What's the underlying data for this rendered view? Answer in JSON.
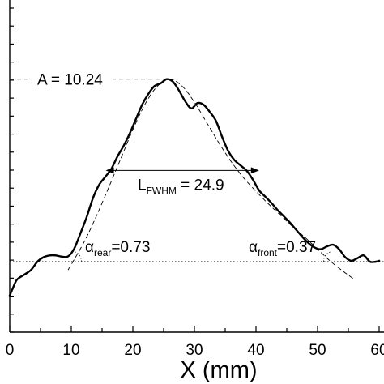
{
  "chart_data": {
    "type": "line",
    "xlabel": "X (mm)",
    "xlim": [
      0,
      60
    ],
    "x_ticks": [
      0,
      10,
      20,
      30,
      40,
      50,
      60
    ],
    "x_tick_labels": [
      "0",
      "10",
      "20",
      "30",
      "40",
      "50",
      "60"
    ],
    "y_tick_count": 19,
    "grid": false,
    "baseline_y": 0,
    "series": [
      {
        "style": "solid-thick",
        "x": [
          0,
          0.5,
          1.2,
          2.5,
          3.5,
          4.5,
          5.5,
          6.5,
          7.5,
          8.5,
          9.5,
          10.5,
          11.5,
          12.5,
          13.5,
          14.5,
          15.5,
          16.5,
          17.5,
          18.5,
          19.5,
          20.5,
          21.5,
          22.5,
          23.5,
          24.5,
          25.5,
          26.5,
          27.5,
          28.5,
          29.5,
          30.5,
          31.5,
          32.5,
          33.5,
          34.5,
          35.5,
          36.5,
          37.5,
          38.5,
          39.5,
          40.5,
          41.5,
          42.5,
          43.5,
          44.5,
          45.5,
          46.5,
          47.5,
          48.5,
          49.5,
          50.5,
          51.5,
          52.5,
          53.5,
          54.5,
          55.5,
          56.5,
          57.5,
          58.5,
          59.5,
          60
        ],
        "y": [
          -1.9,
          -1.5,
          -1.0,
          -0.7,
          -0.45,
          0.0,
          0.25,
          0.35,
          0.35,
          0.28,
          0.3,
          0.75,
          1.6,
          2.5,
          3.55,
          4.3,
          4.75,
          5.2,
          5.9,
          6.5,
          7.2,
          8.0,
          8.8,
          9.4,
          9.85,
          10.0,
          10.24,
          10.1,
          9.6,
          9.0,
          8.6,
          8.9,
          8.8,
          8.4,
          7.9,
          7.0,
          6.2,
          5.7,
          5.4,
          5.1,
          4.6,
          4.0,
          3.65,
          3.3,
          2.9,
          2.55,
          2.2,
          1.8,
          1.4,
          1.05,
          0.8,
          0.7,
          0.85,
          0.95,
          0.7,
          0.25,
          0.05,
          0.2,
          0.35,
          0.0,
          0.0,
          0.05
        ]
      },
      {
        "style": "dashed-fit",
        "x": [
          9.5,
          12,
          14,
          16,
          18,
          20,
          22,
          24,
          26,
          28,
          30,
          32,
          34,
          36,
          38,
          40,
          42,
          44,
          46,
          48,
          50,
          52,
          54,
          56
        ],
        "y": [
          -0.45,
          1.05,
          2.5,
          4.1,
          5.75,
          7.4,
          8.85,
          9.85,
          10.24,
          9.85,
          8.95,
          7.8,
          6.65,
          5.6,
          4.7,
          3.95,
          3.25,
          2.6,
          1.95,
          1.35,
          0.7,
          0.05,
          -0.5,
          -1.0
        ]
      }
    ],
    "reference_line": {
      "style": "dotted",
      "y": 0
    },
    "annotations": {
      "amplitude": {
        "text": "A = 10.24",
        "y": 10.24,
        "x_from": 0,
        "x_to": 25.5
      },
      "fwhm": {
        "text_main": "L",
        "text_sub": "FWHM",
        "text_value": " = 24.9",
        "x_from": 15.6,
        "x_to": 40.5,
        "y": 5.12
      },
      "alpha_rear": {
        "symbol": "α",
        "sub": "rear",
        "value": "=0.73"
      },
      "alpha_front": {
        "symbol": "α",
        "sub": "front",
        "value": "=0.37"
      }
    }
  }
}
